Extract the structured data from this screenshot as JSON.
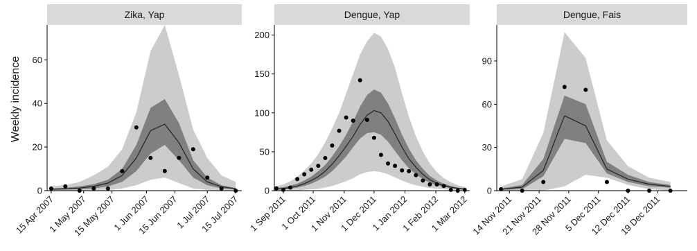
{
  "ylabel": "Weekly incidence",
  "colors": {
    "outer_band": "#cccccc",
    "inner_band": "#808080",
    "median_line": "#222222",
    "points": "#000000",
    "strip_bg": "#d9d9d9",
    "axis": "#000000"
  },
  "chart_data": [
    {
      "type": "line",
      "title": "Zika, Yap",
      "ylim": [
        0,
        76
      ],
      "yticks": [
        0,
        20,
        40,
        60
      ],
      "xlim": [
        "2007-04-13",
        "2007-07-18"
      ],
      "xticks": [
        {
          "date": "2007-04-15",
          "label": "15 Apr 2007"
        },
        {
          "date": "2007-05-01",
          "label": "1 May 2007"
        },
        {
          "date": "2007-05-15",
          "label": "15 May 2007"
        },
        {
          "date": "2007-06-01",
          "label": "1 Jun 2007"
        },
        {
          "date": "2007-06-15",
          "label": "15 Jun 2007"
        },
        {
          "date": "2007-07-01",
          "label": "1 Jul 2007"
        },
        {
          "date": "2007-07-15",
          "label": "15 Jul 2007"
        }
      ],
      "series": [
        {
          "kind": "band_95",
          "x": [
            "2007-04-15",
            "2007-04-22",
            "2007-04-29",
            "2007-05-06",
            "2007-05-13",
            "2007-05-20",
            "2007-05-27",
            "2007-06-03",
            "2007-06-10",
            "2007-06-17",
            "2007-06-24",
            "2007-07-01",
            "2007-07-08",
            "2007-07-15"
          ],
          "lower": [
            0,
            0,
            0,
            0,
            0.3,
            1,
            2.5,
            5,
            6,
            3.5,
            1,
            0.3,
            0,
            0
          ],
          "upper": [
            2,
            2.5,
            4,
            7,
            11,
            19,
            36,
            64,
            76,
            53,
            28,
            15,
            7,
            4
          ]
        },
        {
          "kind": "band_50",
          "x": [
            "2007-04-15",
            "2007-04-22",
            "2007-04-29",
            "2007-05-06",
            "2007-05-13",
            "2007-05-20",
            "2007-05-27",
            "2007-06-03",
            "2007-06-10",
            "2007-06-17",
            "2007-06-24",
            "2007-07-01",
            "2007-07-08",
            "2007-07-15"
          ],
          "lower": [
            0.3,
            0.4,
            0.6,
            1,
            2,
            4,
            9,
            17,
            21,
            14,
            6,
            2.5,
            1,
            0.5
          ],
          "upper": [
            1,
            1.3,
            2,
            3,
            5,
            10,
            21,
            38,
            42,
            31,
            14,
            6,
            2.5,
            1.2
          ]
        },
        {
          "kind": "median",
          "x": [
            "2007-04-15",
            "2007-04-22",
            "2007-04-29",
            "2007-05-06",
            "2007-05-13",
            "2007-05-20",
            "2007-05-27",
            "2007-06-03",
            "2007-06-10",
            "2007-06-17",
            "2007-06-24",
            "2007-07-01",
            "2007-07-08",
            "2007-07-15"
          ],
          "values": [
            0.7,
            0.9,
            1.2,
            2,
            3.5,
            7,
            15,
            27.5,
            30.5,
            22,
            10,
            4,
            1.8,
            0.9
          ]
        },
        {
          "kind": "observed",
          "x": [
            "2007-04-15",
            "2007-04-22",
            "2007-04-29",
            "2007-05-06",
            "2007-05-13",
            "2007-05-20",
            "2007-05-27",
            "2007-06-03",
            "2007-06-10",
            "2007-06-17",
            "2007-06-24",
            "2007-07-01",
            "2007-07-08",
            "2007-07-15"
          ],
          "values": [
            1,
            2,
            0,
            1,
            1,
            9,
            29,
            15,
            9,
            15,
            19,
            6,
            1,
            0
          ]
        }
      ]
    },
    {
      "type": "line",
      "title": "Dengue, Yap",
      "ylim": [
        0,
        213
      ],
      "yticks": [
        0,
        50,
        100,
        150,
        200
      ],
      "xlim": [
        "2011-08-23",
        "2012-03-06"
      ],
      "xticks": [
        {
          "date": "2011-09-01",
          "label": "1 Sep 2011"
        },
        {
          "date": "2011-10-01",
          "label": "1 Oct 2011"
        },
        {
          "date": "2011-11-01",
          "label": "1 Nov 2011"
        },
        {
          "date": "2011-12-01",
          "label": "1 Dec 2011"
        },
        {
          "date": "2012-01-01",
          "label": "1 Jan 2012"
        },
        {
          "date": "2012-02-01",
          "label": "1 Feb 2012"
        },
        {
          "date": "2012-03-01",
          "label": "1 Mar 2012"
        }
      ],
      "series": [
        {
          "kind": "band_95",
          "x": [
            "2011-08-25",
            "2011-09-01",
            "2011-09-08",
            "2011-09-15",
            "2011-09-22",
            "2011-09-29",
            "2011-10-06",
            "2011-10-13",
            "2011-10-20",
            "2011-10-27",
            "2011-11-03",
            "2011-11-10",
            "2011-11-17",
            "2011-11-24",
            "2011-12-01",
            "2011-12-08",
            "2011-12-15",
            "2011-12-22",
            "2011-12-29",
            "2012-01-05",
            "2012-01-12",
            "2012-01-19",
            "2012-01-26",
            "2012-02-02",
            "2012-02-09",
            "2012-02-16",
            "2012-02-23",
            "2012-03-01"
          ],
          "lower": [
            0,
            0,
            0,
            0,
            1,
            1.5,
            2.5,
            4,
            6,
            9,
            12,
            16,
            21,
            24,
            25,
            24,
            21,
            17,
            13,
            9.5,
            7,
            5,
            3.5,
            2.5,
            1.5,
            1,
            0.5,
            0
          ],
          "upper": [
            6,
            8,
            12,
            18,
            26,
            35,
            47,
            62,
            80,
            100,
            125,
            150,
            175,
            192,
            203,
            198,
            182,
            158,
            125,
            95,
            70,
            50,
            35,
            24,
            16,
            11,
            7,
            5
          ]
        },
        {
          "kind": "band_50",
          "x": [
            "2011-08-25",
            "2011-09-01",
            "2011-09-08",
            "2011-09-15",
            "2011-09-22",
            "2011-09-29",
            "2011-10-06",
            "2011-10-13",
            "2011-10-20",
            "2011-10-27",
            "2011-11-03",
            "2011-11-10",
            "2011-11-17",
            "2011-11-24",
            "2011-12-01",
            "2011-12-08",
            "2011-12-15",
            "2011-12-22",
            "2011-12-29",
            "2012-01-05",
            "2012-01-12",
            "2012-01-19",
            "2012-01-26",
            "2012-02-02",
            "2012-02-09",
            "2012-02-16",
            "2012-02-23",
            "2012-03-01"
          ],
          "lower": [
            1,
            1.5,
            2.5,
            4,
            6,
            9,
            13,
            18,
            25,
            34,
            44,
            56,
            67,
            74,
            75,
            72,
            63,
            51,
            39,
            29,
            21,
            15,
            10,
            7,
            5,
            3,
            2,
            1
          ],
          "upper": [
            3.5,
            4.5,
            6.5,
            9,
            13,
            18,
            25,
            33,
            44,
            57,
            72,
            89,
            108,
            123,
            130,
            126,
            112,
            93,
            72,
            54,
            39,
            28,
            19,
            13,
            9,
            6,
            4,
            3
          ]
        },
        {
          "kind": "median",
          "x": [
            "2011-08-25",
            "2011-09-01",
            "2011-09-08",
            "2011-09-15",
            "2011-09-22",
            "2011-09-29",
            "2011-10-06",
            "2011-10-13",
            "2011-10-20",
            "2011-10-27",
            "2011-11-03",
            "2011-11-10",
            "2011-11-17",
            "2011-11-24",
            "2011-12-01",
            "2011-12-08",
            "2011-12-15",
            "2011-12-22",
            "2011-12-29",
            "2012-01-05",
            "2012-01-12",
            "2012-01-19",
            "2012-01-26",
            "2012-02-02",
            "2012-02-09",
            "2012-02-16",
            "2012-02-23",
            "2012-03-01"
          ],
          "values": [
            2,
            2.8,
            4,
            6,
            9,
            13,
            18,
            25,
            34,
            45,
            57,
            70,
            85,
            97,
            103,
            100,
            89,
            73,
            56,
            41,
            30,
            21,
            14,
            9.5,
            6.5,
            4.5,
            3,
            2
          ]
        },
        {
          "kind": "observed",
          "x": [
            "2011-08-25",
            "2011-09-01",
            "2011-09-08",
            "2011-09-15",
            "2011-09-22",
            "2011-09-29",
            "2011-10-06",
            "2011-10-13",
            "2011-10-20",
            "2011-10-27",
            "2011-11-03",
            "2011-11-10",
            "2011-11-17",
            "2011-11-24",
            "2011-12-01",
            "2011-12-08",
            "2011-12-15",
            "2011-12-22",
            "2011-12-29",
            "2012-01-05",
            "2012-01-12",
            "2012-01-19",
            "2012-01-26",
            "2012-02-02",
            "2012-02-09",
            "2012-02-16",
            "2012-02-23",
            "2012-03-01"
          ],
          "values": [
            3,
            1,
            4,
            15,
            21,
            27,
            32,
            42,
            58,
            77,
            94,
            90,
            142,
            91,
            68,
            46,
            35,
            32,
            26,
            25,
            20,
            13,
            8,
            8,
            6,
            1,
            0,
            1
          ]
        }
      ]
    },
    {
      "type": "line",
      "title": "Dengue, Fais",
      "ylim": [
        0,
        115
      ],
      "yticks": [
        0,
        30,
        60,
        90
      ],
      "xlim": [
        "2011-11-11",
        "2011-12-26"
      ],
      "xticks": [
        {
          "date": "2011-11-14",
          "label": "14 Nov 2011"
        },
        {
          "date": "2011-11-21",
          "label": "21 Nov 2011"
        },
        {
          "date": "2011-11-28",
          "label": "28 Nov 2011"
        },
        {
          "date": "2011-12-05",
          "label": "5 Dec 2011"
        },
        {
          "date": "2011-12-12",
          "label": "12 Dec 2011"
        },
        {
          "date": "2011-12-19",
          "label": "19 Dec 2011"
        }
      ],
      "series": [
        {
          "kind": "band_95",
          "x": [
            "2011-11-12",
            "2011-11-17",
            "2011-11-22",
            "2011-11-27",
            "2011-12-02",
            "2011-12-07",
            "2011-12-12",
            "2011-12-17",
            "2011-12-22"
          ],
          "lower": [
            0,
            0,
            0,
            3,
            11,
            9,
            4,
            1,
            0
          ],
          "upper": [
            3,
            8,
            40,
            110,
            92,
            35,
            17,
            9,
            6
          ]
        },
        {
          "kind": "band_50",
          "x": [
            "2011-11-12",
            "2011-11-17",
            "2011-11-22",
            "2011-11-27",
            "2011-12-02",
            "2011-12-07",
            "2011-12-12",
            "2011-12-17",
            "2011-12-22"
          ],
          "lower": [
            0.5,
            1,
            10,
            36,
            33,
            12,
            6,
            3,
            2
          ],
          "upper": [
            1.5,
            4,
            22,
            66,
            60,
            20,
            11,
            6,
            4
          ]
        },
        {
          "kind": "median",
          "x": [
            "2011-11-12",
            "2011-11-17",
            "2011-11-22",
            "2011-11-27",
            "2011-12-02",
            "2011-12-07",
            "2011-12-12",
            "2011-12-17",
            "2011-12-22"
          ],
          "values": [
            1,
            2.5,
            14,
            52,
            45,
            15,
            8,
            4.5,
            3
          ]
        },
        {
          "kind": "observed",
          "x": [
            "2011-11-12",
            "2011-11-17",
            "2011-11-22",
            "2011-11-27",
            "2011-12-02",
            "2011-12-07",
            "2011-12-12",
            "2011-12-17",
            "2011-12-22"
          ],
          "values": [
            1,
            0,
            6,
            72,
            70,
            6,
            0,
            0,
            0
          ]
        }
      ]
    }
  ]
}
